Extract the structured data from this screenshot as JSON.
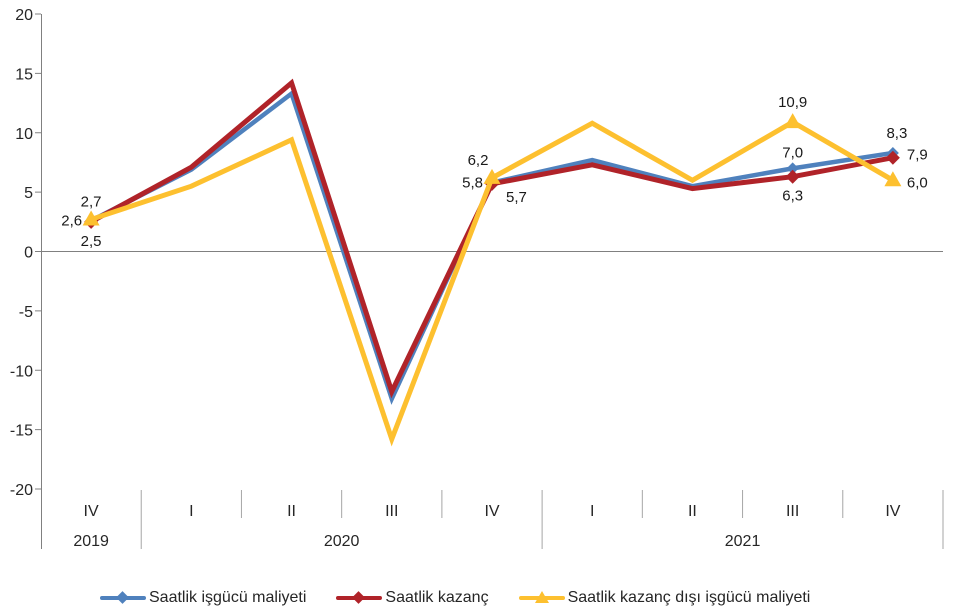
{
  "chart_data": {
    "type": "line",
    "title": "",
    "xlabel": "",
    "ylabel": "",
    "categories": [
      "IV",
      "I",
      "II",
      "III",
      "IV",
      "I",
      "II",
      "III",
      "IV"
    ],
    "year_groups": [
      {
        "label": "2019",
        "span": 1
      },
      {
        "label": "2020",
        "span": 4
      },
      {
        "label": "2021",
        "span": 4
      }
    ],
    "series": [
      {
        "name": "Saatlik işgücü maliyeti",
        "color": "#4F81BD",
        "marker": "diamond",
        "values": [
          2.6,
          6.9,
          13.3,
          -12.4,
          5.8,
          7.7,
          5.5,
          7.0,
          8.3
        ]
      },
      {
        "name": "Saatlik kazanç",
        "color": "#B02329",
        "marker": "diamond",
        "values": [
          2.5,
          7.1,
          14.2,
          -11.8,
          5.7,
          7.3,
          5.3,
          6.3,
          7.9
        ]
      },
      {
        "name": "Saatlik kazanç dışı işgücü maliyeti",
        "color": "#FDC02F",
        "marker": "triangle",
        "values": [
          2.7,
          5.5,
          9.4,
          -15.8,
          6.2,
          10.8,
          6.0,
          10.9,
          6.0
        ]
      }
    ],
    "labeled_indices": [
      0,
      4,
      7,
      8
    ],
    "point_labels": {
      "series_0": [
        "2,6",
        "5,8",
        "7,0",
        "8,3"
      ],
      "series_1": [
        "2,5",
        "5,7",
        "6,3",
        "7,9"
      ],
      "series_2": [
        "2,7",
        "6,2",
        "10,9",
        "6,0"
      ]
    },
    "ylim": [
      -20,
      20
    ],
    "ytick_step": 5,
    "yticks": [
      20,
      15,
      10,
      5,
      0,
      -5,
      -10,
      -15,
      -20
    ],
    "decimal_separator": ",",
    "grid": "zero-line-only",
    "legend_position": "bottom",
    "axis_color": "#808080",
    "separator_color": "#A6A6A6",
    "text_color": "#262626"
  }
}
